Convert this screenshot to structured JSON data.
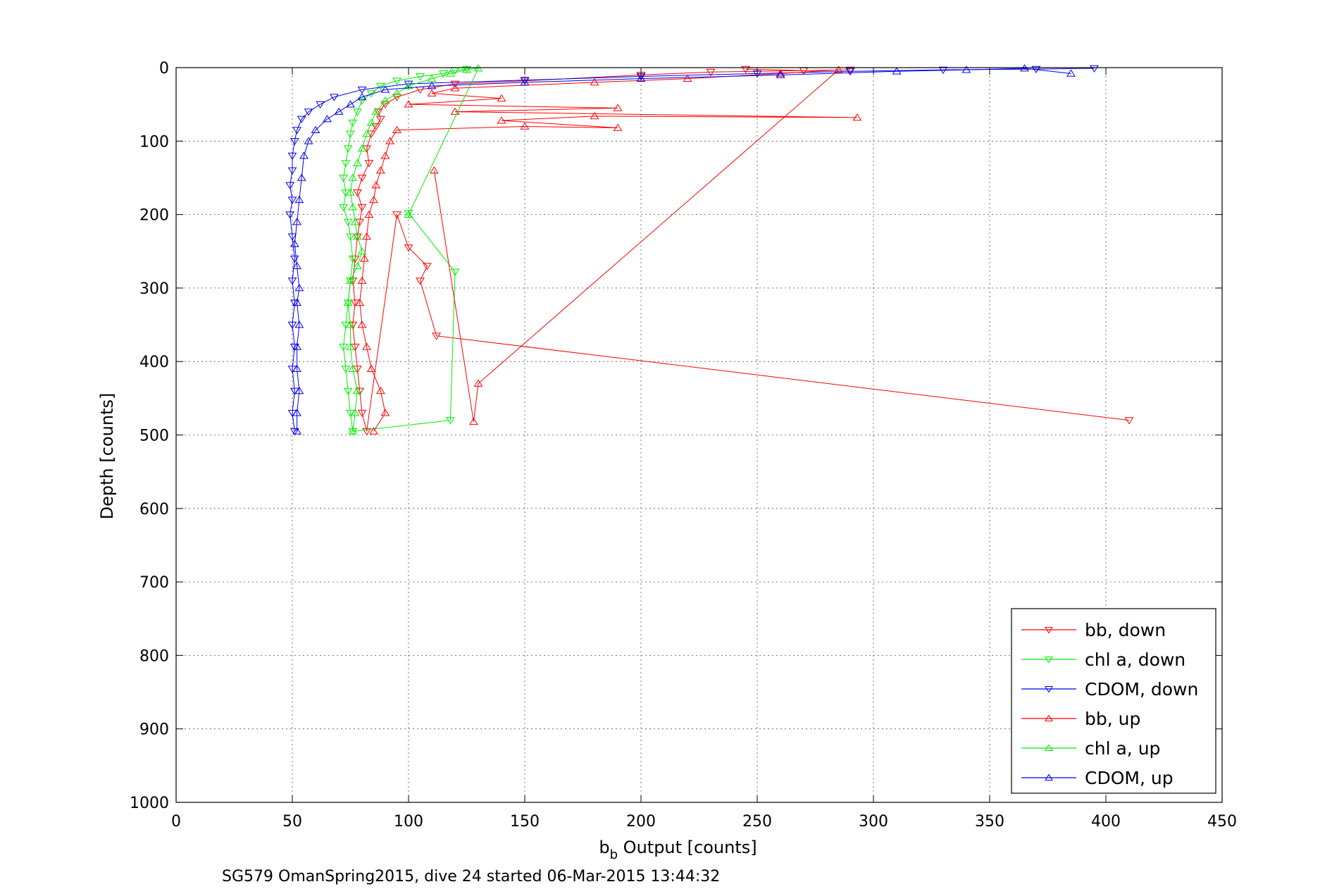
{
  "chart_data": {
    "type": "scatter",
    "xlabel_main": "b",
    "xlabel_sub": "b",
    "xlabel_rest": " Output [counts]",
    "ylabel": "Depth [counts]",
    "caption": "SG579 OmanSpring2015, dive 24 started 06-Mar-2015 13:44:32",
    "xlim": [
      0,
      450
    ],
    "ylim": [
      0,
      1000
    ],
    "y_reversed": true,
    "x_ticks": [
      "0",
      "50",
      "100",
      "150",
      "200",
      "250",
      "300",
      "350",
      "400",
      "450"
    ],
    "y_ticks": [
      "0",
      "100",
      "200",
      "300",
      "400",
      "500",
      "600",
      "700",
      "800",
      "900",
      "1000"
    ],
    "grid": true,
    "legend_position": "bottom-right",
    "series": [
      {
        "name": "bb, down",
        "color": "#ff0000",
        "marker": "triangle-down",
        "points": [
          [
            245,
            2
          ],
          [
            270,
            4
          ],
          [
            290,
            3
          ],
          [
            230,
            6
          ],
          [
            200,
            10
          ],
          [
            150,
            18
          ],
          [
            120,
            22
          ],
          [
            105,
            30
          ],
          [
            95,
            40
          ],
          [
            90,
            50
          ],
          [
            87,
            60
          ],
          [
            88,
            70
          ],
          [
            86,
            80
          ],
          [
            84,
            90
          ],
          [
            82,
            110
          ],
          [
            83,
            130
          ],
          [
            80,
            150
          ],
          [
            78,
            170
          ],
          [
            80,
            190
          ],
          [
            79,
            210
          ],
          [
            78,
            230
          ],
          [
            77,
            260
          ],
          [
            76,
            290
          ],
          [
            77,
            320
          ],
          [
            76,
            350
          ],
          [
            77,
            380
          ],
          [
            78,
            410
          ],
          [
            79,
            440
          ],
          [
            80,
            470
          ],
          [
            82,
            495
          ],
          [
            95,
            200
          ],
          [
            100,
            245
          ],
          [
            108,
            270
          ],
          [
            105,
            290
          ],
          [
            112,
            365
          ],
          [
            410,
            480
          ]
        ]
      },
      {
        "name": "chl a, down",
        "color": "#00ee00",
        "marker": "triangle-down",
        "points": [
          [
            125,
            2
          ],
          [
            120,
            4
          ],
          [
            115,
            8
          ],
          [
            105,
            12
          ],
          [
            95,
            18
          ],
          [
            88,
            25
          ],
          [
            84,
            35
          ],
          [
            80,
            45
          ],
          [
            78,
            60
          ],
          [
            76,
            75
          ],
          [
            75,
            90
          ],
          [
            74,
            110
          ],
          [
            73,
            130
          ],
          [
            72,
            150
          ],
          [
            73,
            170
          ],
          [
            72,
            190
          ],
          [
            74,
            210
          ],
          [
            75,
            230
          ],
          [
            76,
            260
          ],
          [
            75,
            290
          ],
          [
            74,
            320
          ],
          [
            73,
            350
          ],
          [
            72,
            380
          ],
          [
            73,
            410
          ],
          [
            74,
            440
          ],
          [
            75,
            470
          ],
          [
            76,
            495
          ],
          [
            118,
            480
          ],
          [
            120,
            278
          ],
          [
            100,
            198
          ]
        ]
      },
      {
        "name": "CDOM, down",
        "color": "#0000ee",
        "marker": "triangle-down",
        "points": [
          [
            395,
            1
          ],
          [
            370,
            2
          ],
          [
            330,
            3
          ],
          [
            290,
            5
          ],
          [
            250,
            8
          ],
          [
            200,
            12
          ],
          [
            150,
            17
          ],
          [
            100,
            22
          ],
          [
            80,
            30
          ],
          [
            68,
            40
          ],
          [
            62,
            50
          ],
          [
            57,
            60
          ],
          [
            54,
            70
          ],
          [
            52,
            85
          ],
          [
            51,
            100
          ],
          [
            50,
            120
          ],
          [
            50,
            140
          ],
          [
            49,
            160
          ],
          [
            50,
            180
          ],
          [
            49,
            200
          ],
          [
            50,
            230
          ],
          [
            51,
            260
          ],
          [
            50,
            290
          ],
          [
            51,
            320
          ],
          [
            50,
            350
          ],
          [
            51,
            380
          ],
          [
            50,
            410
          ],
          [
            51,
            440
          ],
          [
            50,
            470
          ],
          [
            51,
            495
          ]
        ]
      },
      {
        "name": "bb, up",
        "color": "#ff0000",
        "marker": "triangle-up",
        "points": [
          [
            85,
            495
          ],
          [
            90,
            470
          ],
          [
            88,
            440
          ],
          [
            84,
            410
          ],
          [
            82,
            380
          ],
          [
            80,
            350
          ],
          [
            79,
            320
          ],
          [
            80,
            290
          ],
          [
            81,
            260
          ],
          [
            82,
            230
          ],
          [
            83,
            200
          ],
          [
            85,
            180
          ],
          [
            86,
            160
          ],
          [
            88,
            140
          ],
          [
            90,
            120
          ],
          [
            92,
            100
          ],
          [
            95,
            85
          ],
          [
            150,
            80
          ],
          [
            190,
            82
          ],
          [
            140,
            72
          ],
          [
            180,
            66
          ],
          [
            293,
            68
          ],
          [
            120,
            60
          ],
          [
            190,
            55
          ],
          [
            100,
            50
          ],
          [
            140,
            42
          ],
          [
            110,
            35
          ],
          [
            120,
            28
          ],
          [
            180,
            20
          ],
          [
            220,
            15
          ],
          [
            260,
            8
          ],
          [
            285,
            3
          ],
          [
            130,
            430
          ],
          [
            128,
            482
          ],
          [
            111,
            140
          ]
        ]
      },
      {
        "name": "chl a, up",
        "color": "#00ee00",
        "marker": "triangle-up",
        "points": [
          [
            76,
            495
          ],
          [
            77,
            470
          ],
          [
            78,
            440
          ],
          [
            76,
            410
          ],
          [
            75,
            380
          ],
          [
            75,
            350
          ],
          [
            74,
            320
          ],
          [
            75,
            290
          ],
          [
            78,
            270
          ],
          [
            80,
            250
          ],
          [
            78,
            230
          ],
          [
            77,
            210
          ],
          [
            76,
            190
          ],
          [
            75,
            170
          ],
          [
            76,
            150
          ],
          [
            78,
            130
          ],
          [
            80,
            110
          ],
          [
            82,
            90
          ],
          [
            84,
            75
          ],
          [
            86,
            60
          ],
          [
            90,
            45
          ],
          [
            95,
            35
          ],
          [
            100,
            25
          ],
          [
            110,
            15
          ],
          [
            118,
            8
          ],
          [
            125,
            3
          ],
          [
            130,
            1
          ],
          [
            100,
            200
          ]
        ]
      },
      {
        "name": "CDOM, up",
        "color": "#0000ee",
        "marker": "triangle-up",
        "points": [
          [
            52,
            495
          ],
          [
            52,
            470
          ],
          [
            53,
            440
          ],
          [
            52,
            410
          ],
          [
            52,
            380
          ],
          [
            53,
            350
          ],
          [
            52,
            320
          ],
          [
            53,
            300
          ],
          [
            52,
            270
          ],
          [
            51,
            240
          ],
          [
            52,
            210
          ],
          [
            53,
            180
          ],
          [
            54,
            150
          ],
          [
            55,
            120
          ],
          [
            57,
            100
          ],
          [
            60,
            85
          ],
          [
            65,
            70
          ],
          [
            70,
            60
          ],
          [
            75,
            50
          ],
          [
            80,
            40
          ],
          [
            90,
            30
          ],
          [
            110,
            25
          ],
          [
            150,
            20
          ],
          [
            200,
            15
          ],
          [
            260,
            10
          ],
          [
            310,
            5
          ],
          [
            340,
            3
          ],
          [
            365,
            1
          ],
          [
            385,
            8
          ]
        ]
      }
    ]
  }
}
